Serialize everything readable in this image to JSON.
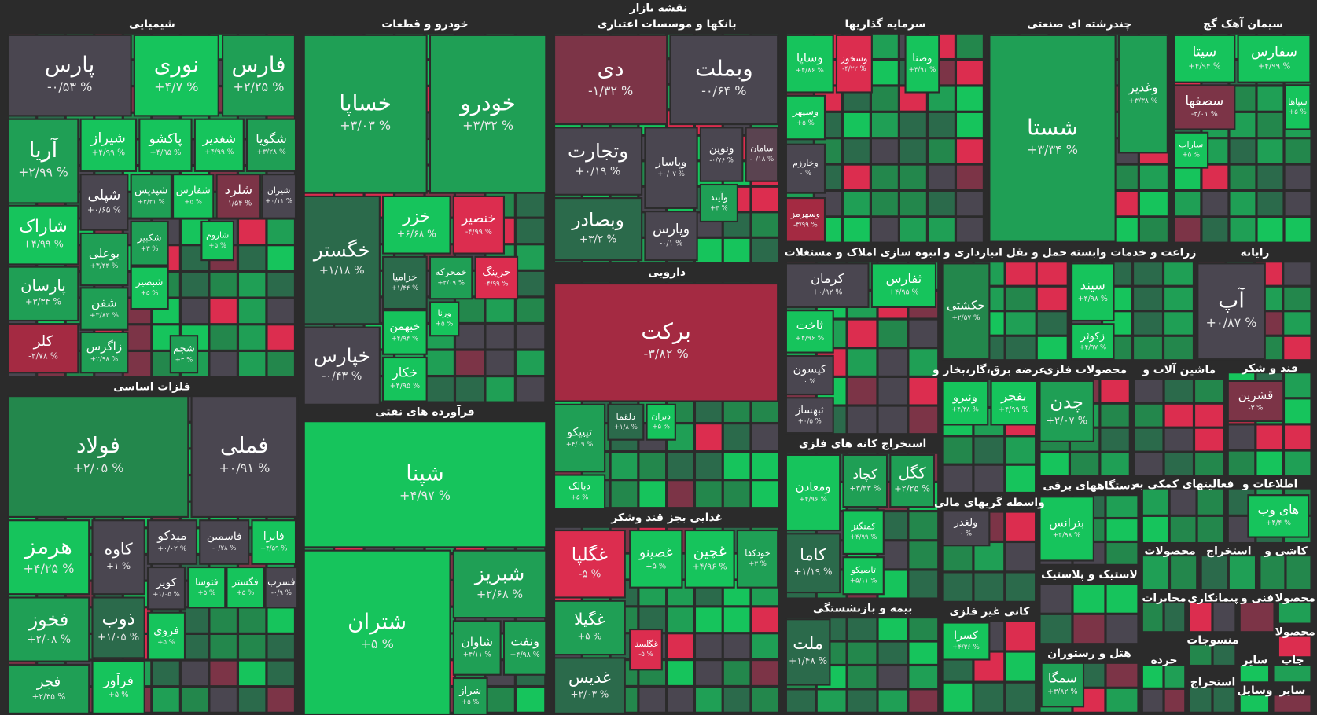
{
  "header": {
    "title": "نقشه بازار"
  },
  "sectors": [
    {
      "title": "شیمیایی",
      "tiles": [
        {
          "name": "پارس",
          "change": "-۰/۵۳ %",
          "color": "#4a4650"
        },
        {
          "name": "نوری",
          "change": "+۴/۷ %",
          "color": "#16c45c"
        },
        {
          "name": "فارس",
          "change": "+۲/۲۵ %",
          "color": "#1f9f55"
        },
        {
          "name": "آریا",
          "change": "+۲/۹۹ %",
          "color": "#1f9f55"
        },
        {
          "name": "شیراز",
          "change": "+۴/۹۹ %",
          "color": "#16c45c"
        },
        {
          "name": "پاکشو",
          "change": "+۴/۹۵ %",
          "color": "#16c45c"
        },
        {
          "name": "شغدیر",
          "change": "+۴/۹۹ %",
          "color": "#16c45c"
        },
        {
          "name": "شگویا",
          "change": "+۳/۲۸ %",
          "color": "#1f9f55"
        },
        {
          "name": "شپلی",
          "change": "+۰/۶۵ %",
          "color": "#4a4650"
        },
        {
          "name": "شپدیس",
          "change": "+۳/۲۱ %",
          "color": "#1f9f55"
        },
        {
          "name": "شفارس",
          "change": "+۵ %",
          "color": "#16c45c"
        },
        {
          "name": "شلرد",
          "change": "-۱/۵۴ %",
          "color": "#7c3447"
        },
        {
          "name": "شیران",
          "change": "+۰/۱۱ %",
          "color": "#4a4650"
        },
        {
          "name": "شاراک",
          "change": "+۴/۹۹ %",
          "color": "#16c45c"
        },
        {
          "name": "پارسان",
          "change": "+۳/۳۴ %",
          "color": "#1f9f55"
        },
        {
          "name": "کلر",
          "change": "-۲/۷۸ %",
          "color": "#a42a42"
        },
        {
          "name": "بوعلی",
          "change": "+۳/۴۴ %",
          "color": "#1f9f55"
        },
        {
          "name": "شفن",
          "change": "+۳/۸۳ %",
          "color": "#1f9f55"
        },
        {
          "name": "زاگرس",
          "change": "+۲/۹۸ %",
          "color": "#1f9f55"
        },
        {
          "name": "شکبیر",
          "change": "+۳ %",
          "color": "#1f9f55"
        },
        {
          "name": "شاروم",
          "change": "+۵ %",
          "color": "#16c45c"
        },
        {
          "name": "شبصیر",
          "change": "+۵ %",
          "color": "#16c45c"
        },
        {
          "name": "شجم",
          "change": "+۳ %",
          "color": "#1f9f55"
        }
      ]
    },
    {
      "title": "فلزات اساسی",
      "tiles": [
        {
          "name": "فولاد",
          "change": "+۲/۰۵ %",
          "color": "#23874c"
        },
        {
          "name": "فملی",
          "change": "+۰/۹۱ %",
          "color": "#4a4650"
        },
        {
          "name": "هرمز",
          "change": "+۴/۲۵ %",
          "color": "#16c45c"
        },
        {
          "name": "کاوه",
          "change": "+۱ %",
          "color": "#4a4650"
        },
        {
          "name": "میدکو",
          "change": "+۰/۰۲ %",
          "color": "#4a4650"
        },
        {
          "name": "فاسمین",
          "change": "-۰/۲۸ %",
          "color": "#4a4650"
        },
        {
          "name": "فایرا",
          "change": "+۴/۵۹ %",
          "color": "#16c45c"
        },
        {
          "name": "فخوز",
          "change": "+۲/۰۸ %",
          "color": "#1f9f55"
        },
        {
          "name": "ذوب",
          "change": "+۱/۰۵ %",
          "color": "#2b6a4b"
        },
        {
          "name": "کویر",
          "change": "+۱/۰۵ %",
          "color": "#4a4650"
        },
        {
          "name": "فروی",
          "change": "+۵ %",
          "color": "#16c45c"
        },
        {
          "name": "فتوسا",
          "change": "+۵ %",
          "color": "#16c45c"
        },
        {
          "name": "فگستر",
          "change": "+۵ %",
          "color": "#16c45c"
        },
        {
          "name": "فسرب",
          "change": "-۰/۹ %",
          "color": "#4a4650"
        },
        {
          "name": "فجر",
          "change": "+۲/۳۵ %",
          "color": "#1f9f55"
        },
        {
          "name": "فرآور",
          "change": "+۵ %",
          "color": "#16c45c"
        }
      ]
    },
    {
      "title": "خودرو و قطعات",
      "tiles": [
        {
          "name": "خساپا",
          "change": "+۳/۰۳ %",
          "color": "#1f9f55"
        },
        {
          "name": "خودرو",
          "change": "+۳/۳۲ %",
          "color": "#1f9f55"
        },
        {
          "name": "خگستر",
          "change": "+۱/۱۸ %",
          "color": "#2b6a4b"
        },
        {
          "name": "خپارس",
          "change": "-۰/۴۳ %",
          "color": "#4a4650"
        },
        {
          "name": "خزر",
          "change": "+۶/۶۸ %",
          "color": "#16c45c"
        },
        {
          "name": "خنصیر",
          "change": "-۴/۹۹ %",
          "color": "#dc2d4f"
        },
        {
          "name": "خزامیا",
          "change": "+۱/۴۴ %",
          "color": "#2b6a4b"
        },
        {
          "name": "خمحرکه",
          "change": "+۲/۰۹ %",
          "color": "#1f9f55"
        },
        {
          "name": "خرینگ",
          "change": "-۴/۹۹ %",
          "color": "#dc2d4f"
        },
        {
          "name": "خبهمن",
          "change": "+۴/۹۴ %",
          "color": "#16c45c"
        },
        {
          "name": "ورنا",
          "change": "+۵ %",
          "color": "#16c45c"
        },
        {
          "name": "خکار",
          "change": "+۴/۹۵ %",
          "color": "#16c45c"
        }
      ]
    },
    {
      "title": "فرآورده های نفتی",
      "tiles": [
        {
          "name": "شپنا",
          "change": "+۴/۹۷ %",
          "color": "#16c45c"
        },
        {
          "name": "شتران",
          "change": "+۵ %",
          "color": "#16c45c"
        },
        {
          "name": "شبریز",
          "change": "+۲/۶۸ %",
          "color": "#1f9f55"
        },
        {
          "name": "شاوان",
          "change": "+۴/۱۱ %",
          "color": "#1f9f55"
        },
        {
          "name": "ونفت",
          "change": "+۴/۹۸ %",
          "color": "#1f9f55"
        },
        {
          "name": "شراز",
          "change": "+۵ %",
          "color": "#1f9f55"
        }
      ]
    },
    {
      "title": "بانکها و موسسات اعتباری",
      "tiles": [
        {
          "name": "دی",
          "change": "-۱/۳۲ %",
          "color": "#7c3447"
        },
        {
          "name": "وبملت",
          "change": "-۰/۶۴ %",
          "color": "#4a4650"
        },
        {
          "name": "وتجارت",
          "change": "+۰/۱۹ %",
          "color": "#4a4650"
        },
        {
          "name": "وپاسار",
          "change": "+۰/۰۷ %",
          "color": "#4a4650"
        },
        {
          "name": "ونوین",
          "change": "-۰/۷۶ %",
          "color": "#4a4650"
        },
        {
          "name": "سامان",
          "change": "-۰/۱۸ %",
          "color": "#5a4350"
        },
        {
          "name": "وبصادر",
          "change": "+۳/۲ %",
          "color": "#2b6a4b"
        },
        {
          "name": "وپارس",
          "change": "-۰/۱ %",
          "color": "#4a4650"
        },
        {
          "name": "وآیند",
          "change": "+۴ %",
          "color": "#1f9f55"
        }
      ]
    },
    {
      "title": "دارویی",
      "tiles": [
        {
          "name": "برکت",
          "change": "-۳/۸۲ %",
          "color": "#a42a42"
        },
        {
          "name": "تیپیکو",
          "change": "+۴/۰۹ %",
          "color": "#1f9f55"
        },
        {
          "name": "دلقما",
          "change": "+۱/۸ %",
          "color": "#2b6a4b"
        },
        {
          "name": "دیران",
          "change": "+۵ %",
          "color": "#16c45c"
        },
        {
          "name": "دیالک",
          "change": "+۵ %",
          "color": "#16c45c"
        }
      ]
    },
    {
      "title": "غذایی بجز قند وشکر",
      "tiles": [
        {
          "name": "غگلپا",
          "change": "-۵ %",
          "color": "#dc2d4f"
        },
        {
          "name": "غصینو",
          "change": "+۵ %",
          "color": "#16c45c"
        },
        {
          "name": "غچین",
          "change": "+۴/۹۶ %",
          "color": "#16c45c"
        },
        {
          "name": "خودکفا",
          "change": "+۳ %",
          "color": "#1f9f55"
        },
        {
          "name": "غگیلا",
          "change": "+۵ %",
          "color": "#1f9f55"
        },
        {
          "name": "غگلستا",
          "change": "-۵ %",
          "color": "#dc2d4f"
        },
        {
          "name": "غدیس",
          "change": "+۲/۰۳ %",
          "color": "#2b6a4b"
        }
      ]
    },
    {
      "title": "سرمایه گذاریها",
      "tiles": [
        {
          "name": "وساپا",
          "change": "+۴/۸۶ %",
          "color": "#16c45c"
        },
        {
          "name": "وسخوز",
          "change": "-۴/۲۲ %",
          "color": "#dc2d4f"
        },
        {
          "name": "وصنا",
          "change": "+۴/۹۱ %",
          "color": "#16c45c"
        },
        {
          "name": "وسپهر",
          "change": "+۵ %",
          "color": "#16c45c"
        },
        {
          "name": "وخارزم",
          "change": "۰ %",
          "color": "#4a4650"
        },
        {
          "name": "وسهرمز",
          "change": "-۳/۹۹ %",
          "color": "#a42a42"
        }
      ]
    },
    {
      "title": "انبوه سازی املاک و مستغلات",
      "tiles": [
        {
          "name": "کرمان",
          "change": "+۰/۹۲ %",
          "color": "#4a4650"
        },
        {
          "name": "ثفارس",
          "change": "+۴/۹۵ %",
          "color": "#16c45c"
        },
        {
          "name": "ثاخت",
          "change": "+۴/۹۶ %",
          "color": "#16c45c"
        },
        {
          "name": "کیسون",
          "change": "۰ %",
          "color": "#4a4650"
        },
        {
          "name": "ثبهساز",
          "change": "+۰/۵ %",
          "color": "#4a4650"
        }
      ]
    },
    {
      "title": "استخراج کانه های فلزی",
      "tiles": [
        {
          "name": "ومعادن",
          "change": "+۴/۹۶ %",
          "color": "#16c45c"
        },
        {
          "name": "کچاد",
          "change": "+۳/۳۳ %",
          "color": "#1f9f55"
        },
        {
          "name": "کگل",
          "change": "+۲/۲۵ %",
          "color": "#1f9f55"
        },
        {
          "name": "کمنگنز",
          "change": "+۴/۹۹ %",
          "color": "#16c45c"
        },
        {
          "name": "کاما",
          "change": "+۱/۱۹ %",
          "color": "#2b6a4b"
        },
        {
          "name": "تاصیکو",
          "change": "+۵/۱۱ %",
          "color": "#16c45c"
        }
      ]
    },
    {
      "title": "بیمه و بازنشستگی",
      "tiles": [
        {
          "name": "ملت",
          "change": "+۱/۴۸ %",
          "color": "#2b6a4b"
        }
      ]
    },
    {
      "title": "چندرشته ای صنعتی",
      "tiles": [
        {
          "name": "شستا",
          "change": "+۳/۳۴ %",
          "color": "#1f9f55"
        },
        {
          "name": "وغدیر",
          "change": "+۳/۳۸ %",
          "color": "#1f9f55"
        }
      ]
    },
    {
      "title": "سیمان آهک گچ",
      "tiles": [
        {
          "name": "سیتا",
          "change": "+۴/۹۴ %",
          "color": "#16c45c"
        },
        {
          "name": "سفارس",
          "change": "+۴/۹۹ %",
          "color": "#16c45c"
        },
        {
          "name": "سصفها",
          "change": "-۳/۰۱ %",
          "color": "#7c3447"
        },
        {
          "name": "سپاها",
          "change": "+۵ %",
          "color": "#16c45c"
        },
        {
          "name": "ساراب",
          "change": "+۵ %",
          "color": "#16c45c"
        }
      ]
    },
    {
      "title": "حمل و نقل انبارداری و",
      "tiles": [
        {
          "name": "حکشتی",
          "change": "+۲/۵۷ %",
          "color": "#23874c"
        }
      ]
    },
    {
      "title": "زراعت و خدمات وابسته",
      "tiles": [
        {
          "name": "سیند",
          "change": "+۴/۹۸ %",
          "color": "#16c45c"
        },
        {
          "name": "زکوثر",
          "change": "+۴/۹۷ %",
          "color": "#16c45c"
        }
      ]
    },
    {
      "title": "رایانه",
      "tiles": [
        {
          "name": "آپ",
          "change": "+۰/۸۷ %",
          "color": "#4a4650"
        }
      ]
    },
    {
      "title": "عرضه برق،گاز،بخار و",
      "tiles": [
        {
          "name": "ونیرو",
          "change": "+۴/۳۸ %",
          "color": "#16c45c"
        },
        {
          "name": "بفجر",
          "change": "+۴/۹۹ %",
          "color": "#16c45c"
        }
      ]
    },
    {
      "title": "محصولات فلزی",
      "tiles": [
        {
          "name": "چدن",
          "change": "+۲/۰۷ %",
          "color": "#1f9f55"
        }
      ]
    },
    {
      "title": "ماشین آلات و",
      "tiles": []
    },
    {
      "title": "قند و شکر",
      "tiles": [
        {
          "name": "قشرین",
          "change": "-۳ %",
          "color": "#7c3447"
        }
      ]
    },
    {
      "title": "واسطه گریهای مالی",
      "tiles": [
        {
          "name": "ولغدر",
          "change": "۰ %",
          "color": "#4a4650"
        }
      ]
    },
    {
      "title": "دستگاههای برقی",
      "tiles": [
        {
          "name": "بترانس",
          "change": "+۴/۹۸ %",
          "color": "#16c45c"
        }
      ]
    },
    {
      "title": "فعالیتهای کمکی به",
      "tiles": []
    },
    {
      "title": "اطلاعات و",
      "tiles": [
        {
          "name": "های وب",
          "change": "+۴/۴ %",
          "color": "#16c45c"
        }
      ]
    },
    {
      "title": "کانی غیر فلزی",
      "tiles": [
        {
          "name": "کسرا",
          "change": "+۴/۳۶ %",
          "color": "#16c45c"
        }
      ]
    },
    {
      "title": "لاستیک و پلاستیک",
      "tiles": []
    },
    {
      "title": "هتل و رستوران",
      "tiles": [
        {
          "name": "سمگا",
          "change": "+۳/۸۲ %",
          "color": "#1f9f55"
        }
      ]
    },
    {
      "title": "محصولات",
      "tiles": []
    },
    {
      "title": "استخراج",
      "tiles": []
    },
    {
      "title": "کاشی و",
      "tiles": []
    },
    {
      "title": "مخابرات",
      "tiles": []
    },
    {
      "title": "پیمانکاری",
      "tiles": []
    },
    {
      "title": "فنی و",
      "tiles": []
    },
    {
      "title": "محصولا",
      "tiles": []
    },
    {
      "title": "منسوجات",
      "tiles": []
    },
    {
      "title": "محصولا",
      "tiles": []
    },
    {
      "title": "خرده",
      "tiles": []
    },
    {
      "title": "سایر",
      "tiles": []
    },
    {
      "title": "چاپ",
      "tiles": []
    },
    {
      "title": "استخراج",
      "tiles": []
    },
    {
      "title": "وسایل",
      "tiles": []
    },
    {
      "title": "سایر",
      "tiles": []
    }
  ]
}
